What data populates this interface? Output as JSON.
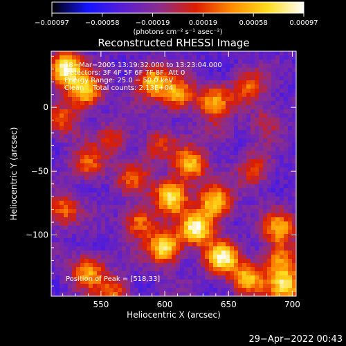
{
  "chart_data": {
    "type": "heatmap",
    "title": "Reconstructed RHESSI Image",
    "xlabel": "Heliocentric X (arcsec)",
    "ylabel": "Heliocentric Y (arcsec)",
    "xlim": [
      511,
      703
    ],
    "ylim": [
      -148,
      44
    ],
    "x_ticks": [
      {
        "value": 550,
        "label": "550"
      },
      {
        "value": 600,
        "label": "600"
      },
      {
        "value": 650,
        "label": "650"
      },
      {
        "value": 700,
        "label": "700"
      }
    ],
    "y_ticks": [
      {
        "value": 0,
        "label": "0"
      },
      {
        "value": -50,
        "label": "−50"
      },
      {
        "value": -100,
        "label": "−100"
      }
    ],
    "colorbar": {
      "min": -0.00097,
      "max": 0.00097,
      "tick_labels": [
        "−0.00097",
        "−0.00058",
        "−0.00019",
        "0.00019",
        "0.00058",
        "0.00097"
      ],
      "units": "(photons cm⁻² s⁻¹ asec⁻²)",
      "colormap": [
        "#000000",
        "#1414ff",
        "#5a1ed2",
        "#8c2d8c",
        "#dc1e00",
        "#ff8c00",
        "#ffdc1e",
        "#ffffff"
      ]
    },
    "annotations": [
      "18−Mar−2005 13:19:32.000 to 13:23:04.000",
      "Detectors: 3F 4F 5F 6F 7F 8F, Att 0",
      "Energy Range: 25.0 − 50.0 keV",
      "Clean    Total counts: 2.13E+04"
    ],
    "peak_label": "Position of Peak = [518,33]",
    "peak_position": [
      518,
      33
    ],
    "blobs": [
      {
        "x": 522,
        "y": 30,
        "v": 0.98
      },
      {
        "x": 538,
        "y": 12,
        "v": 0.85
      },
      {
        "x": 520,
        "y": -10,
        "v": 0.6
      },
      {
        "x": 590,
        "y": 20,
        "v": 0.8
      },
      {
        "x": 610,
        "y": 10,
        "v": 0.75
      },
      {
        "x": 638,
        "y": 5,
        "v": 0.7
      },
      {
        "x": 665,
        "y": 15,
        "v": 0.65
      },
      {
        "x": 560,
        "y": -25,
        "v": 0.55
      },
      {
        "x": 540,
        "y": -45,
        "v": 0.65
      },
      {
        "x": 575,
        "y": -55,
        "v": 0.6
      },
      {
        "x": 620,
        "y": -45,
        "v": 0.8
      },
      {
        "x": 605,
        "y": -70,
        "v": 0.9
      },
      {
        "x": 640,
        "y": -75,
        "v": 0.85
      },
      {
        "x": 625,
        "y": -95,
        "v": 0.95
      },
      {
        "x": 600,
        "y": -110,
        "v": 0.9
      },
      {
        "x": 645,
        "y": -118,
        "v": 0.9
      },
      {
        "x": 580,
        "y": -90,
        "v": 0.7
      },
      {
        "x": 520,
        "y": -80,
        "v": 0.65
      },
      {
        "x": 540,
        "y": -128,
        "v": 0.75
      },
      {
        "x": 670,
        "y": -50,
        "v": 0.6
      },
      {
        "x": 690,
        "y": -95,
        "v": 0.75
      },
      {
        "x": 690,
        "y": -120,
        "v": 0.7
      },
      {
        "x": 695,
        "y": -140,
        "v": 0.85
      },
      {
        "x": 665,
        "y": -135,
        "v": 0.8
      },
      {
        "x": 560,
        "y": -145,
        "v": 0.65
      },
      {
        "x": 680,
        "y": -10,
        "v": 0.5
      },
      {
        "x": 640,
        "y": -20,
        "v": 0.45
      },
      {
        "x": 595,
        "y": -30,
        "v": 0.55
      }
    ],
    "grid": false
  },
  "timestamp": "29−Apr−2022 00:43"
}
